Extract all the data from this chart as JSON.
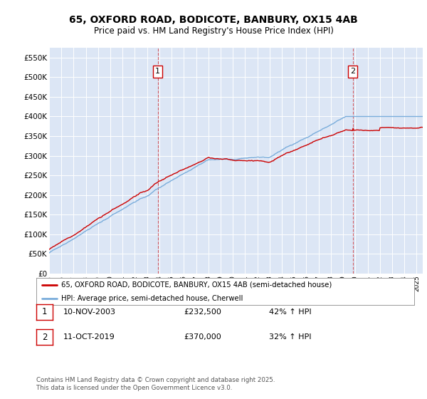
{
  "title": "65, OXFORD ROAD, BODICOTE, BANBURY, OX15 4AB",
  "subtitle": "Price paid vs. HM Land Registry's House Price Index (HPI)",
  "ylim": [
    0,
    575000
  ],
  "yticks": [
    0,
    50000,
    100000,
    150000,
    200000,
    250000,
    300000,
    350000,
    400000,
    450000,
    500000,
    550000
  ],
  "ytick_labels": [
    "£0",
    "£50K",
    "£100K",
    "£150K",
    "£200K",
    "£250K",
    "£300K",
    "£350K",
    "£400K",
    "£450K",
    "£500K",
    "£550K"
  ],
  "plot_bg_color": "#dce6f5",
  "grid_color": "#ffffff",
  "red_line_color": "#cc0000",
  "blue_line_color": "#7aaddb",
  "marker1_x": 2003.86,
  "marker2_x": 2019.79,
  "marker1_label": "1",
  "marker2_label": "2",
  "legend_red": "65, OXFORD ROAD, BODICOTE, BANBURY, OX15 4AB (semi-detached house)",
  "legend_blue": "HPI: Average price, semi-detached house, Cherwell",
  "sale1_date": "10-NOV-2003",
  "sale1_price": "£232,500",
  "sale1_hpi": "42% ↑ HPI",
  "sale2_date": "11-OCT-2019",
  "sale2_price": "£370,000",
  "sale2_hpi": "32% ↑ HPI",
  "footer": "Contains HM Land Registry data © Crown copyright and database right 2025.\nThis data is licensed under the Open Government Licence v3.0.",
  "xmin": 1995,
  "xmax": 2025.5
}
